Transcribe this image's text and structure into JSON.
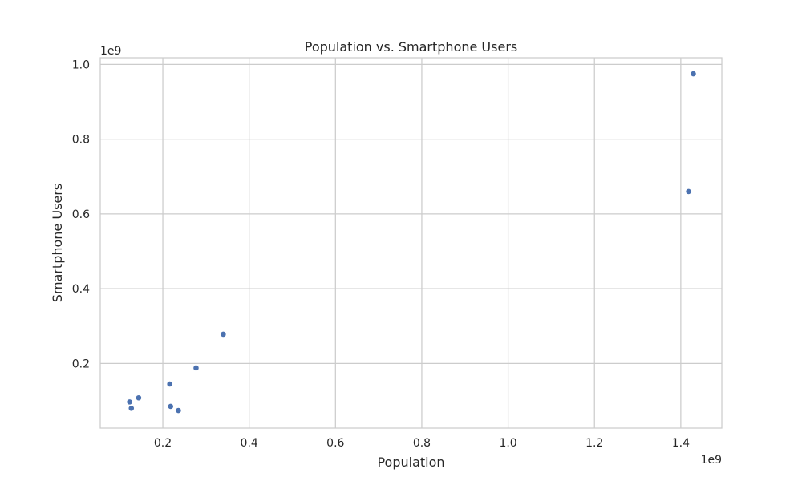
{
  "chart_data": {
    "type": "scatter",
    "title": "Population vs. Smartphone Users",
    "xlabel": "Population",
    "ylabel": "Smartphone Users",
    "x_offset_label": "1e9",
    "y_offset_label": "1e9",
    "xlim": [
      0.055,
      1.495
    ],
    "ylim": [
      0.027,
      1.018
    ],
    "xticks": [
      0.2,
      0.4,
      0.6,
      0.8,
      1.0,
      1.2,
      1.4
    ],
    "xtick_labels": [
      "0.2",
      "0.4",
      "0.6",
      "0.8",
      "1.0",
      "1.2",
      "1.4"
    ],
    "yticks": [
      0.2,
      0.4,
      0.6,
      0.8,
      1.0
    ],
    "ytick_labels": [
      "0.2",
      "0.4",
      "0.6",
      "0.8",
      "1.0"
    ],
    "grid": true,
    "marker_color": "#4c72b0",
    "grid_color": "#cccccc",
    "points": [
      {
        "x": 1.429,
        "y": 0.975
      },
      {
        "x": 1.418,
        "y": 0.66
      },
      {
        "x": 0.34,
        "y": 0.278
      },
      {
        "x": 0.277,
        "y": 0.188
      },
      {
        "x": 0.216,
        "y": 0.145
      },
      {
        "x": 0.144,
        "y": 0.108
      },
      {
        "x": 0.123,
        "y": 0.097
      },
      {
        "x": 0.127,
        "y": 0.08
      },
      {
        "x": 0.218,
        "y": 0.085
      },
      {
        "x": 0.236,
        "y": 0.074
      }
    ]
  }
}
